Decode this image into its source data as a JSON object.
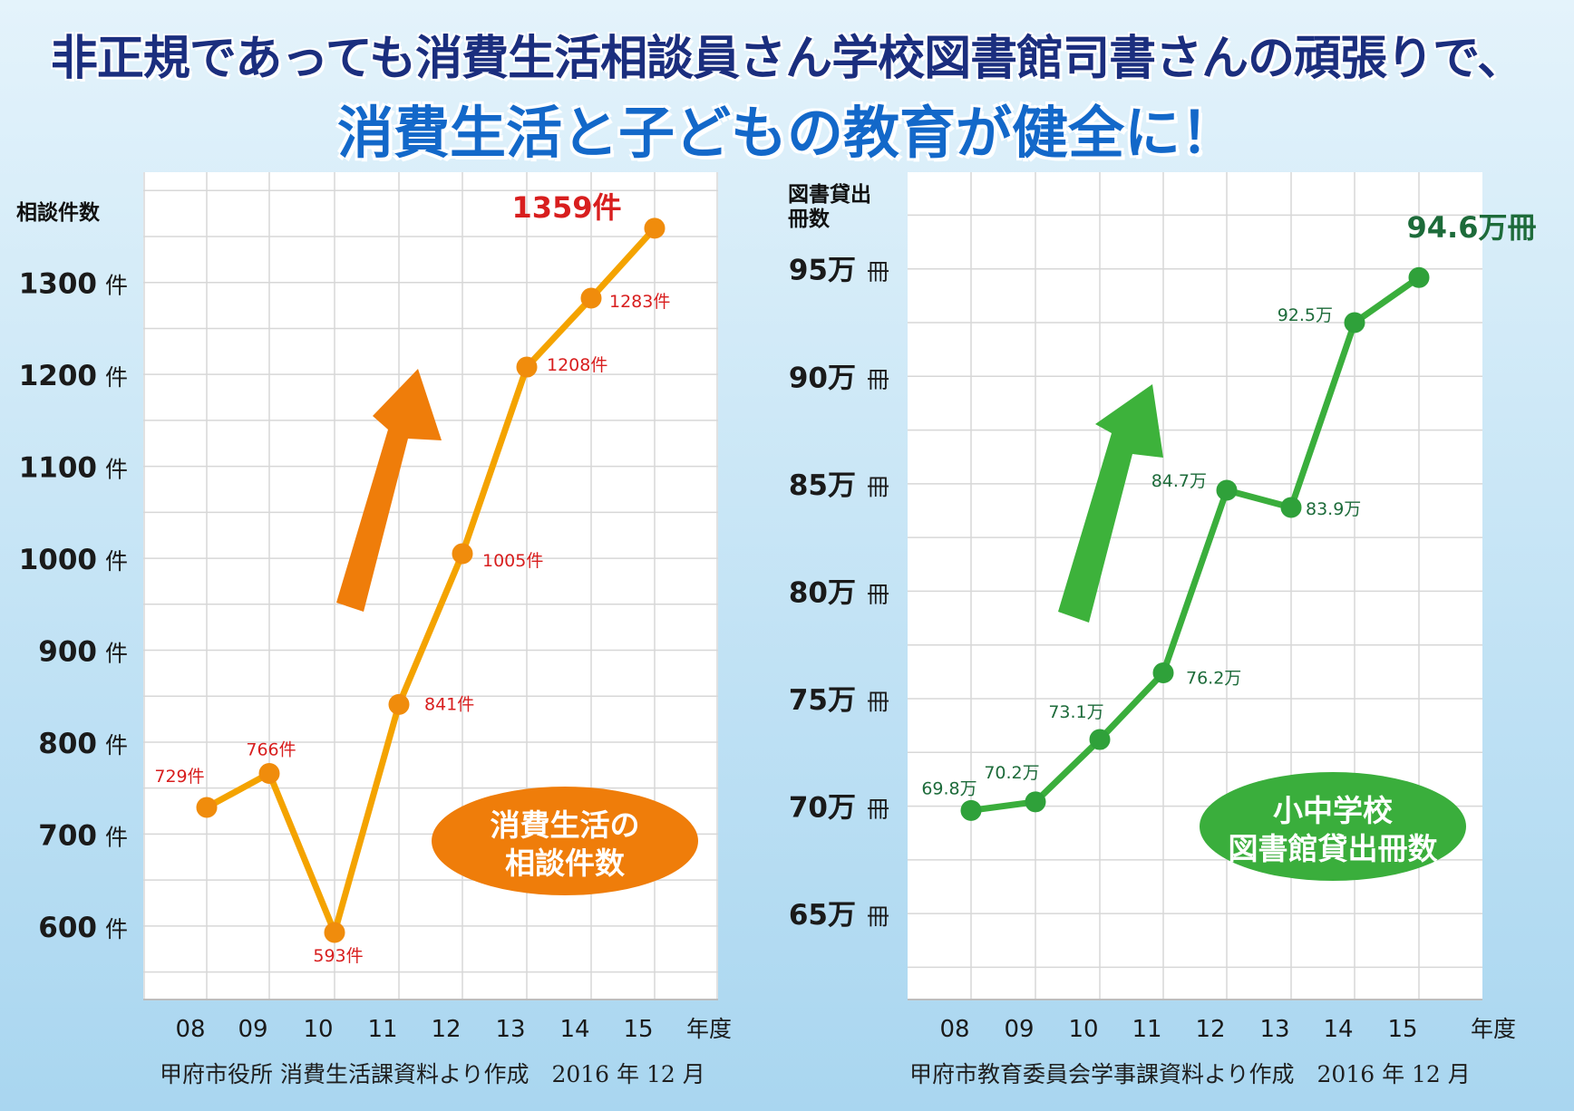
{
  "headline": {
    "line1": "非正規であっても消費生活相談員さん学校図書館司書さんの頑張りで、",
    "line2": "消費生活と子どもの教育が健全に！"
  },
  "colors": {
    "left_line": "#f4a300",
    "left_marker": "#f08c0c",
    "left_arrow": "#ef7d0a",
    "left_label_text": "#d81e1e",
    "right_line": "#3aae3c",
    "right_marker": "#2fa13a",
    "right_label_text": "#1d6b3a"
  },
  "chart_data": [
    {
      "type": "line",
      "ylabel": "相談件数",
      "xlabel": "年度",
      "x": [
        "08",
        "09",
        "10",
        "11",
        "12",
        "13",
        "14",
        "15"
      ],
      "series": [
        {
          "values": [
            729,
            766,
            593,
            841,
            1005,
            1208,
            1283,
            1359
          ]
        }
      ],
      "data_labels": [
        "729件",
        "766件",
        "593件",
        "841件",
        "1005件",
        "1208件",
        "1283件"
      ],
      "highlight_label": "1359件",
      "ytick_values": [
        600,
        700,
        800,
        900,
        1000,
        1100,
        1200,
        1300
      ],
      "ytick_numbers": [
        "600",
        "700",
        "800",
        "900",
        "1000",
        "1100",
        "1200",
        "1300"
      ],
      "ytick_unit": "件",
      "ylim": [
        520,
        1420
      ],
      "grid": true,
      "badge": [
        "消費生活の",
        "相談件数"
      ],
      "source": "甲府市役所 消費生活課資料より作成　2016 年 12 月"
    },
    {
      "type": "line",
      "ylabel": [
        "図書貸出",
        "冊数"
      ],
      "xlabel": "年度",
      "x": [
        "08",
        "09",
        "10",
        "11",
        "12",
        "13",
        "14",
        "15"
      ],
      "series": [
        {
          "values": [
            69.8,
            70.2,
            73.1,
            76.2,
            84.7,
            83.9,
            92.5,
            94.6
          ]
        }
      ],
      "data_labels": [
        "69.8万",
        "70.2万",
        "73.1万",
        "76.2万",
        "84.7万",
        "83.9万",
        "92.5万"
      ],
      "highlight_label": "94.6万冊",
      "ytick_values": [
        65,
        70,
        75,
        80,
        85,
        90,
        95
      ],
      "ytick_numbers": [
        "65万",
        "70万",
        "75万",
        "80万",
        "85万",
        "90万",
        "95万"
      ],
      "ytick_unit": "冊",
      "ylim": [
        61,
        99.5
      ],
      "grid": true,
      "badge": [
        "小中学校",
        "図書館貸出冊数"
      ],
      "source": "甲府市教育委員会学事課資料より作成　2016 年 12 月"
    }
  ]
}
